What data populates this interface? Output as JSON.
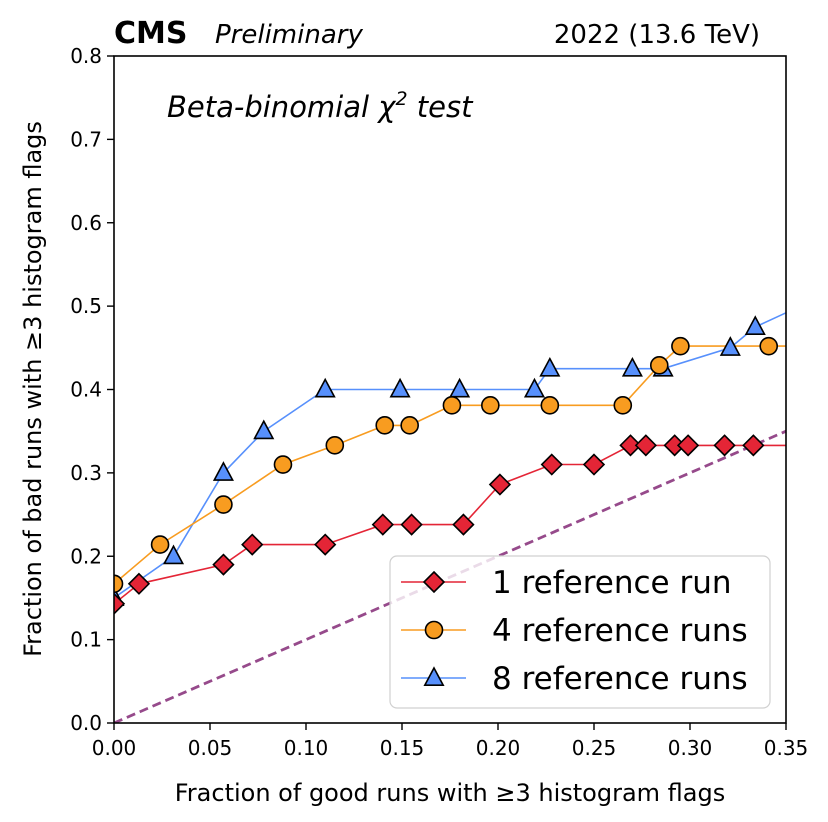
{
  "header": {
    "experiment": "CMS",
    "status": "Preliminary",
    "energy": "2022 (13.6 TeV)"
  },
  "chart_data": {
    "type": "line",
    "title": "",
    "annotation": {
      "text": "Beta-binomial χ",
      "superscript": "2",
      "suffix": " test"
    },
    "xlabel": "Fraction of good runs with ≥3 histogram flags",
    "ylabel": "Fraction of bad runs with ≥3 histogram flags",
    "xlim": [
      0.0,
      0.35
    ],
    "ylim": [
      0.0,
      0.8
    ],
    "xticks": [
      0.0,
      0.05,
      0.1,
      0.15,
      0.2,
      0.25,
      0.3,
      0.35
    ],
    "xtick_labels": [
      "0.00",
      "0.05",
      "0.10",
      "0.15",
      "0.20",
      "0.25",
      "0.30",
      "0.35"
    ],
    "yticks": [
      0.0,
      0.1,
      0.2,
      0.3,
      0.4,
      0.5,
      0.6,
      0.7,
      0.8
    ],
    "ytick_labels": [
      "0.0",
      "0.1",
      "0.2",
      "0.3",
      "0.4",
      "0.5",
      "0.6",
      "0.7",
      "0.8"
    ],
    "grid": false,
    "legend_position": "bottom-right",
    "series": [
      {
        "name": "1 reference run",
        "color": "#e42536",
        "marker": "diamond",
        "points": [
          [
            0.0,
            0.143
          ],
          [
            0.0,
            0.143
          ],
          [
            0.013,
            0.167
          ],
          [
            0.057,
            0.19
          ],
          [
            0.072,
            0.214
          ],
          [
            0.11,
            0.214
          ],
          [
            0.14,
            0.238
          ],
          [
            0.155,
            0.238
          ],
          [
            0.182,
            0.238
          ],
          [
            0.201,
            0.286
          ],
          [
            0.228,
            0.31
          ],
          [
            0.25,
            0.31
          ],
          [
            0.269,
            0.333
          ],
          [
            0.277,
            0.333
          ],
          [
            0.292,
            0.333
          ],
          [
            0.299,
            0.333
          ],
          [
            0.318,
            0.333
          ],
          [
            0.333,
            0.333
          ],
          [
            0.35,
            0.333
          ]
        ]
      },
      {
        "name": "4 reference runs",
        "color": "#f89c20",
        "marker": "circle",
        "points": [
          [
            0.0,
            0.167
          ],
          [
            0.024,
            0.214
          ],
          [
            0.057,
            0.262
          ],
          [
            0.088,
            0.31
          ],
          [
            0.115,
            0.333
          ],
          [
            0.141,
            0.357
          ],
          [
            0.154,
            0.357
          ],
          [
            0.176,
            0.381
          ],
          [
            0.196,
            0.381
          ],
          [
            0.227,
            0.381
          ],
          [
            0.265,
            0.381
          ],
          [
            0.284,
            0.429
          ],
          [
            0.295,
            0.452
          ],
          [
            0.341,
            0.452
          ],
          [
            0.35,
            0.452
          ]
        ]
      },
      {
        "name": "8 reference runs",
        "color": "#5790fc",
        "marker": "triangle",
        "points": [
          [
            0.0,
            0.15
          ],
          [
            0.031,
            0.2
          ],
          [
            0.057,
            0.3
          ],
          [
            0.078,
            0.35
          ],
          [
            0.11,
            0.4
          ],
          [
            0.149,
            0.4
          ],
          [
            0.18,
            0.4
          ],
          [
            0.219,
            0.4
          ],
          [
            0.227,
            0.425
          ],
          [
            0.27,
            0.425
          ],
          [
            0.286,
            0.425
          ],
          [
            0.321,
            0.45
          ],
          [
            0.334,
            0.475
          ],
          [
            0.35,
            0.492
          ]
        ]
      }
    ],
    "reference_line": {
      "color": "#964a8b",
      "style": "dashed",
      "points": [
        [
          0.0,
          0.0
        ],
        [
          0.35,
          0.35
        ]
      ]
    }
  }
}
